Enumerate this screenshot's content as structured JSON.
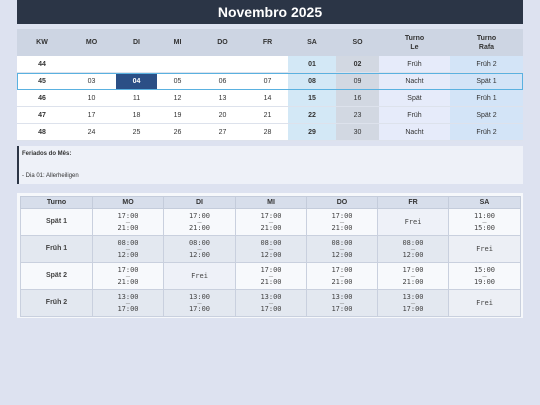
{
  "title": "Novembro 2025",
  "calendar": {
    "headers": [
      "KW",
      "MO",
      "DI",
      "MI",
      "DO",
      "FR",
      "SA",
      "SO",
      "Turno\nLe",
      "Turno\nRafa"
    ],
    "rows": [
      {
        "kw": "44",
        "days": [
          "",
          "",
          "",
          "",
          "",
          "01",
          "02"
        ],
        "le": "Früh",
        "rafa": "Früh 2"
      },
      {
        "kw": "45",
        "days": [
          "03",
          "04",
          "05",
          "06",
          "07",
          "08",
          "09"
        ],
        "le": "Nacht",
        "rafa": "Spät 1"
      },
      {
        "kw": "46",
        "days": [
          "10",
          "11",
          "12",
          "13",
          "14",
          "15",
          "16"
        ],
        "le": "Spät",
        "rafa": "Früh 1"
      },
      {
        "kw": "47",
        "days": [
          "17",
          "18",
          "19",
          "20",
          "21",
          "22",
          "23"
        ],
        "le": "Früh",
        "rafa": "Spät 2"
      },
      {
        "kw": "48",
        "days": [
          "24",
          "25",
          "26",
          "27",
          "28",
          "29",
          "30"
        ],
        "le": "Nacht",
        "rafa": "Früh 2"
      }
    ],
    "today": "04"
  },
  "holidays": {
    "title": "Feriados do Mês:",
    "items": [
      "- Dia 01: Allerheiligen"
    ]
  },
  "shifts": {
    "headers": [
      "Turno",
      "MO",
      "DI",
      "MI",
      "DO",
      "FR",
      "SA"
    ],
    "rows": [
      {
        "name": "Spät 1",
        "cells": [
          [
            "17:00",
            "21:00"
          ],
          [
            "17:00",
            "21:00"
          ],
          [
            "17:00",
            "21:00"
          ],
          [
            "17:00",
            "21:00"
          ],
          "Frei",
          [
            "11:00",
            "15:00"
          ]
        ]
      },
      {
        "name": "Früh 1",
        "cells": [
          [
            "08:00",
            "12:00"
          ],
          [
            "08:00",
            "12:00"
          ],
          [
            "08:00",
            "12:00"
          ],
          [
            "08:00",
            "12:00"
          ],
          [
            "08:00",
            "12:00"
          ],
          "Frei"
        ]
      },
      {
        "name": "Spät 2",
        "cells": [
          [
            "17:00",
            "21:00"
          ],
          "Frei",
          [
            "17:00",
            "21:00"
          ],
          [
            "17:00",
            "21:00"
          ],
          [
            "17:00",
            "21:00"
          ],
          [
            "15:00",
            "19:00"
          ]
        ]
      },
      {
        "name": "Früh 2",
        "cells": [
          [
            "13:00",
            "17:00"
          ],
          [
            "13:00",
            "17:00"
          ],
          [
            "13:00",
            "17:00"
          ],
          [
            "13:00",
            "17:00"
          ],
          [
            "13:00",
            "17:00"
          ],
          "Frei"
        ]
      }
    ],
    "dash": "–"
  },
  "colors": {
    "header_bg": "#2b3546",
    "today_bg": "#2b4f86",
    "current_week_border": "#5ab1e0"
  }
}
